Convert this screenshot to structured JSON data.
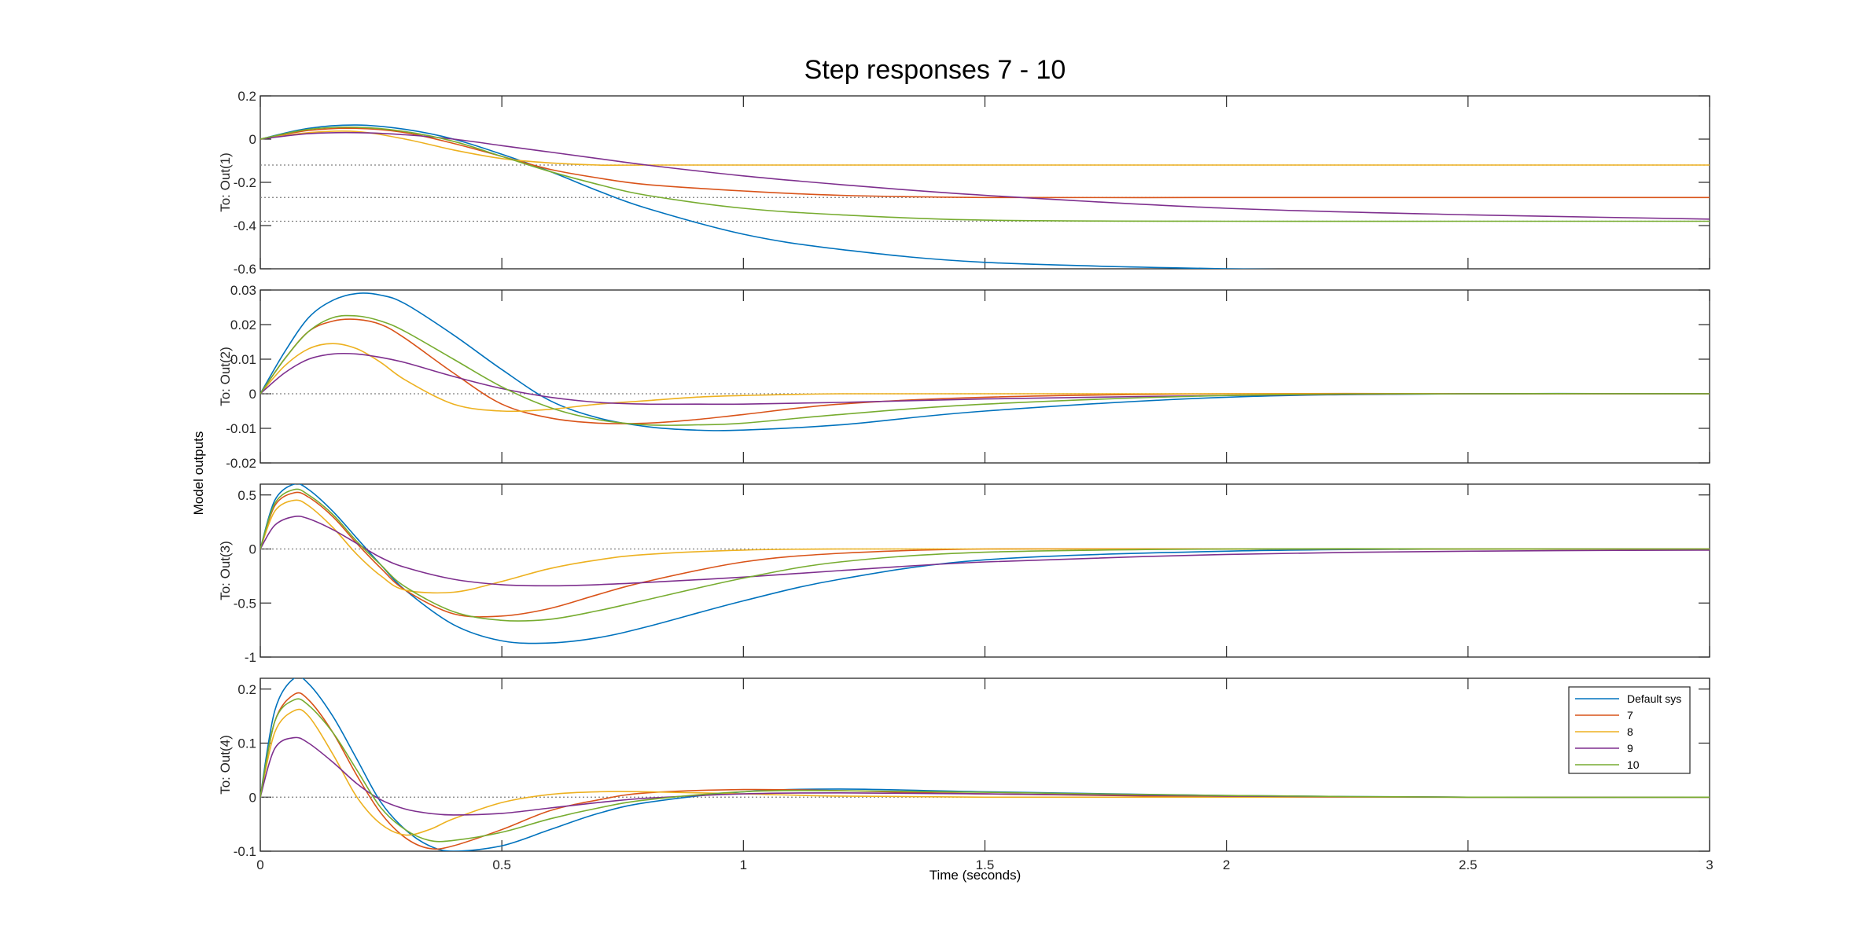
{
  "chart_data": {
    "type": "line",
    "title": "Step responses 7 - 10",
    "xlabel": "Time (seconds)",
    "ylabel": "Model outputs",
    "xlim": [
      0,
      3
    ],
    "x_ticks": [
      "0",
      "0.5",
      "1",
      "1.5",
      "2",
      "2.5",
      "3"
    ],
    "grid": false,
    "legend": {
      "position": "top-right of bottom panel",
      "entries": [
        "Default sys",
        "7",
        "8",
        "9",
        "10"
      ]
    },
    "colors": {
      "Default sys": "#0072BD",
      "7": "#D95319",
      "8": "#EDB120",
      "9": "#7E2F8E",
      "10": "#77AC30",
      "steady_state_line": "#7f7f7f"
    },
    "panels": [
      {
        "ylabel": "To: Out(1)",
        "ylim": [
          -0.6,
          0.2
        ],
        "y_ticks": [
          "0.2",
          "0",
          "-0.2",
          "-0.4",
          "-0.6"
        ],
        "steady_state_dotted": [
          -0.12,
          -0.27,
          -0.38
        ],
        "series": [
          {
            "name": "Default sys",
            "x": [
              0,
              0.1,
              0.2,
              0.3,
              0.4,
              0.5,
              0.6,
              0.7,
              0.8,
              1.0,
              1.2,
              1.5,
              2.0,
              2.5,
              3.0
            ],
            "y": [
              0,
              0.05,
              0.065,
              0.045,
              0.0,
              -0.07,
              -0.15,
              -0.24,
              -0.32,
              -0.44,
              -0.51,
              -0.57,
              -0.6,
              -0.61,
              -0.61
            ]
          },
          {
            "name": "7",
            "x": [
              0,
              0.1,
              0.2,
              0.3,
              0.4,
              0.5,
              0.6,
              0.7,
              0.8,
              1.0,
              1.2,
              1.5,
              2.0,
              2.5,
              3.0
            ],
            "y": [
              0,
              0.04,
              0.05,
              0.03,
              -0.02,
              -0.08,
              -0.14,
              -0.18,
              -0.21,
              -0.24,
              -0.26,
              -0.27,
              -0.27,
              -0.27,
              -0.27
            ]
          },
          {
            "name": "8",
            "x": [
              0,
              0.1,
              0.2,
              0.3,
              0.4,
              0.5,
              0.6,
              0.7,
              0.8,
              1.0,
              1.2,
              1.5,
              2.0,
              2.5,
              3.0
            ],
            "y": [
              0,
              0.03,
              0.035,
              0.0,
              -0.05,
              -0.09,
              -0.11,
              -0.12,
              -0.12,
              -0.12,
              -0.12,
              -0.12,
              -0.12,
              -0.12,
              -0.12
            ]
          },
          {
            "name": "9",
            "x": [
              0,
              0.1,
              0.2,
              0.3,
              0.4,
              0.5,
              0.6,
              0.7,
              0.8,
              1.0,
              1.2,
              1.5,
              2.0,
              2.5,
              3.0
            ],
            "y": [
              0,
              0.025,
              0.03,
              0.02,
              0.0,
              -0.03,
              -0.06,
              -0.09,
              -0.12,
              -0.17,
              -0.21,
              -0.26,
              -0.32,
              -0.35,
              -0.37
            ]
          },
          {
            "name": "10",
            "x": [
              0,
              0.1,
              0.2,
              0.3,
              0.4,
              0.5,
              0.6,
              0.7,
              0.8,
              1.0,
              1.2,
              1.5,
              2.0,
              2.5,
              3.0
            ],
            "y": [
              0,
              0.045,
              0.055,
              0.035,
              -0.01,
              -0.08,
              -0.15,
              -0.21,
              -0.26,
              -0.32,
              -0.35,
              -0.375,
              -0.38,
              -0.38,
              -0.38
            ]
          }
        ]
      },
      {
        "ylabel": "To: Out(2)",
        "ylim": [
          -0.02,
          0.03
        ],
        "y_ticks": [
          "0.03",
          "0.02",
          "0.01",
          "0",
          "-0.01",
          "-0.02"
        ],
        "steady_state_dotted": [
          0
        ],
        "series": [
          {
            "name": "Default sys",
            "x": [
              0,
              0.05,
              0.1,
              0.15,
              0.2,
              0.25,
              0.3,
              0.4,
              0.5,
              0.6,
              0.7,
              0.8,
              0.9,
              1.0,
              1.2,
              1.5,
              2.0,
              2.5,
              3.0
            ],
            "y": [
              0,
              0.012,
              0.022,
              0.027,
              0.029,
              0.0285,
              0.026,
              0.017,
              0.007,
              -0.002,
              -0.007,
              -0.0095,
              -0.0105,
              -0.0105,
              -0.009,
              -0.005,
              -0.001,
              0.0,
              0.0
            ]
          },
          {
            "name": "7",
            "x": [
              0,
              0.05,
              0.1,
              0.15,
              0.2,
              0.25,
              0.3,
              0.4,
              0.5,
              0.6,
              0.7,
              0.8,
              0.9,
              1.0,
              1.2,
              1.5,
              2.0,
              2.5,
              3.0
            ],
            "y": [
              0,
              0.01,
              0.018,
              0.021,
              0.0215,
              0.02,
              0.016,
              0.006,
              -0.003,
              -0.007,
              -0.0085,
              -0.0085,
              -0.0075,
              -0.006,
              -0.003,
              -0.001,
              0.0,
              0.0,
              0.0
            ]
          },
          {
            "name": "8",
            "x": [
              0,
              0.05,
              0.1,
              0.15,
              0.2,
              0.25,
              0.3,
              0.4,
              0.5,
              0.6,
              0.7,
              0.8,
              0.9,
              1.0,
              1.2,
              1.5,
              2.0,
              2.5,
              3.0
            ],
            "y": [
              0,
              0.008,
              0.013,
              0.0145,
              0.013,
              0.009,
              0.004,
              -0.003,
              -0.005,
              -0.0045,
              -0.003,
              -0.002,
              -0.001,
              -0.0005,
              0.0,
              0.0,
              0.0,
              0.0,
              0.0
            ]
          },
          {
            "name": "9",
            "x": [
              0,
              0.05,
              0.1,
              0.15,
              0.2,
              0.25,
              0.3,
              0.4,
              0.5,
              0.6,
              0.7,
              0.8,
              0.9,
              1.0,
              1.2,
              1.5,
              2.0,
              2.5,
              3.0
            ],
            "y": [
              0,
              0.006,
              0.01,
              0.0115,
              0.0115,
              0.0105,
              0.009,
              0.005,
              0.0015,
              -0.001,
              -0.0025,
              -0.003,
              -0.003,
              -0.003,
              -0.0025,
              -0.0015,
              -0.0005,
              0.0,
              0.0
            ]
          },
          {
            "name": "10",
            "x": [
              0,
              0.05,
              0.1,
              0.15,
              0.2,
              0.25,
              0.3,
              0.4,
              0.5,
              0.6,
              0.7,
              0.8,
              0.9,
              1.0,
              1.2,
              1.5,
              2.0,
              2.5,
              3.0
            ],
            "y": [
              0,
              0.01,
              0.018,
              0.022,
              0.0225,
              0.021,
              0.018,
              0.01,
              0.002,
              -0.004,
              -0.0075,
              -0.009,
              -0.009,
              -0.0085,
              -0.006,
              -0.003,
              -0.0005,
              0.0,
              0.0
            ]
          }
        ]
      },
      {
        "ylabel": "To: Out(3)",
        "ylim": [
          -1,
          0.6
        ],
        "y_ticks": [
          "0.5",
          "0",
          "-0.5",
          "-1"
        ],
        "steady_state_dotted": [
          0
        ],
        "series": [
          {
            "name": "Default sys",
            "x": [
              0,
              0.03,
              0.07,
              0.1,
              0.15,
              0.2,
              0.25,
              0.3,
              0.4,
              0.5,
              0.6,
              0.7,
              0.8,
              1.0,
              1.2,
              1.5,
              2.0,
              2.5,
              3.0
            ],
            "y": [
              0,
              0.45,
              0.6,
              0.55,
              0.35,
              0.1,
              -0.15,
              -0.38,
              -0.7,
              -0.85,
              -0.87,
              -0.82,
              -0.72,
              -0.48,
              -0.28,
              -0.1,
              -0.02,
              0.0,
              0.0
            ]
          },
          {
            "name": "7",
            "x": [
              0,
              0.03,
              0.07,
              0.1,
              0.15,
              0.2,
              0.25,
              0.3,
              0.4,
              0.5,
              0.6,
              0.7,
              0.8,
              1.0,
              1.2,
              1.5,
              2.0,
              2.5,
              3.0
            ],
            "y": [
              0,
              0.4,
              0.52,
              0.48,
              0.3,
              0.05,
              -0.18,
              -0.38,
              -0.6,
              -0.62,
              -0.55,
              -0.42,
              -0.3,
              -0.12,
              -0.04,
              0.0,
              0.0,
              0.0,
              0.0
            ]
          },
          {
            "name": "8",
            "x": [
              0,
              0.03,
              0.07,
              0.1,
              0.15,
              0.2,
              0.25,
              0.3,
              0.4,
              0.5,
              0.6,
              0.7,
              0.8,
              1.0,
              1.2,
              1.5,
              2.0,
              2.5,
              3.0
            ],
            "y": [
              0,
              0.35,
              0.45,
              0.4,
              0.2,
              -0.05,
              -0.25,
              -0.38,
              -0.4,
              -0.3,
              -0.18,
              -0.1,
              -0.05,
              -0.01,
              0.0,
              0.0,
              0.0,
              0.0,
              0.0
            ]
          },
          {
            "name": "9",
            "x": [
              0,
              0.03,
              0.07,
              0.1,
              0.15,
              0.2,
              0.25,
              0.3,
              0.4,
              0.5,
              0.6,
              0.7,
              0.8,
              1.0,
              1.2,
              1.5,
              2.0,
              2.5,
              3.0
            ],
            "y": [
              0,
              0.22,
              0.3,
              0.28,
              0.18,
              0.05,
              -0.08,
              -0.17,
              -0.28,
              -0.33,
              -0.34,
              -0.33,
              -0.31,
              -0.26,
              -0.2,
              -0.12,
              -0.05,
              -0.02,
              -0.01
            ]
          },
          {
            "name": "10",
            "x": [
              0,
              0.03,
              0.07,
              0.1,
              0.15,
              0.2,
              0.25,
              0.3,
              0.4,
              0.5,
              0.6,
              0.7,
              0.8,
              1.0,
              1.2,
              1.5,
              2.0,
              2.5,
              3.0
            ],
            "y": [
              0,
              0.42,
              0.55,
              0.5,
              0.32,
              0.07,
              -0.15,
              -0.35,
              -0.58,
              -0.66,
              -0.65,
              -0.57,
              -0.47,
              -0.27,
              -0.12,
              -0.03,
              0.0,
              0.0,
              0.0
            ]
          }
        ]
      },
      {
        "ylabel": "To: Out(4)",
        "ylim": [
          -0.1,
          0.22
        ],
        "y_ticks": [
          "0.2",
          "0.1",
          "0",
          "-0.1"
        ],
        "steady_state_dotted": [
          0
        ],
        "series": [
          {
            "name": "Default sys",
            "x": [
              0,
              0.03,
              0.07,
              0.1,
              0.15,
              0.2,
              0.25,
              0.3,
              0.35,
              0.4,
              0.5,
              0.6,
              0.7,
              0.8,
              1.0,
              1.2,
              1.5,
              2.0,
              2.5,
              3.0
            ],
            "y": [
              0,
              0.16,
              0.22,
              0.21,
              0.15,
              0.07,
              -0.01,
              -0.06,
              -0.09,
              -0.1,
              -0.09,
              -0.06,
              -0.03,
              -0.01,
              0.01,
              0.015,
              0.01,
              0.003,
              0.0,
              0.0
            ]
          },
          {
            "name": "7",
            "x": [
              0,
              0.03,
              0.07,
              0.1,
              0.15,
              0.2,
              0.25,
              0.3,
              0.35,
              0.4,
              0.5,
              0.6,
              0.7,
              0.8,
              1.0,
              1.2,
              1.5,
              2.0,
              2.5,
              3.0
            ],
            "y": [
              0,
              0.14,
              0.19,
              0.18,
              0.12,
              0.04,
              -0.03,
              -0.075,
              -0.095,
              -0.09,
              -0.06,
              -0.025,
              -0.005,
              0.008,
              0.014,
              0.012,
              0.006,
              0.001,
              0.0,
              0.0
            ]
          },
          {
            "name": "8",
            "x": [
              0,
              0.03,
              0.07,
              0.1,
              0.15,
              0.2,
              0.25,
              0.3,
              0.35,
              0.4,
              0.5,
              0.6,
              0.7,
              0.8,
              1.0,
              1.2,
              1.5,
              2.0,
              2.5,
              3.0
            ],
            "y": [
              0,
              0.12,
              0.16,
              0.15,
              0.08,
              0.0,
              -0.05,
              -0.07,
              -0.06,
              -0.04,
              -0.01,
              0.005,
              0.01,
              0.01,
              0.006,
              0.002,
              0.0,
              0.0,
              0.0,
              0.0
            ]
          },
          {
            "name": "9",
            "x": [
              0,
              0.03,
              0.07,
              0.1,
              0.15,
              0.2,
              0.25,
              0.3,
              0.35,
              0.4,
              0.5,
              0.6,
              0.7,
              0.8,
              1.0,
              1.2,
              1.5,
              2.0,
              2.5,
              3.0
            ],
            "y": [
              0,
              0.09,
              0.11,
              0.1,
              0.065,
              0.025,
              -0.005,
              -0.022,
              -0.03,
              -0.033,
              -0.03,
              -0.02,
              -0.01,
              -0.002,
              0.006,
              0.008,
              0.006,
              0.002,
              0.0,
              0.0
            ]
          },
          {
            "name": "10",
            "x": [
              0,
              0.03,
              0.07,
              0.1,
              0.15,
              0.2,
              0.25,
              0.3,
              0.35,
              0.4,
              0.5,
              0.6,
              0.7,
              0.8,
              1.0,
              1.2,
              1.5,
              2.0,
              2.5,
              3.0
            ],
            "y": [
              0,
              0.14,
              0.18,
              0.17,
              0.12,
              0.05,
              -0.02,
              -0.06,
              -0.08,
              -0.08,
              -0.065,
              -0.04,
              -0.02,
              -0.005,
              0.01,
              0.012,
              0.009,
              0.003,
              0.0,
              0.0
            ]
          }
        ]
      }
    ]
  }
}
